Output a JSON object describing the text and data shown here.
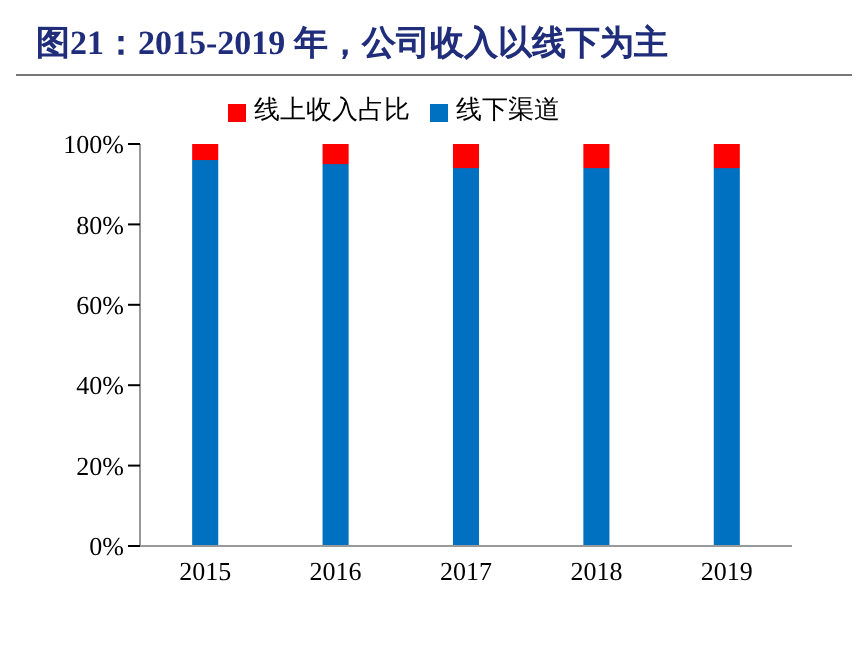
{
  "chart_data": {
    "type": "bar",
    "title": "图21：2015-2019 年，公司收入以线下为主",
    "categories": [
      "2015",
      "2016",
      "2017",
      "2018",
      "2019"
    ],
    "stacked": true,
    "series": [
      {
        "name": "线下渠道",
        "color": "#0070c0",
        "values": [
          96,
          95,
          94,
          94,
          94
        ]
      },
      {
        "name": "线上收入占比",
        "color": "#ff0000",
        "values": [
          4,
          5,
          6,
          6,
          6
        ]
      }
    ],
    "ylim": [
      0,
      100
    ],
    "yticks": [
      {
        "value": 0,
        "label": "0%"
      },
      {
        "value": 20,
        "label": "20%"
      },
      {
        "value": 40,
        "label": "40%"
      },
      {
        "value": 60,
        "label": "60%"
      },
      {
        "value": 80,
        "label": "80%"
      },
      {
        "value": 100,
        "label": "100%"
      }
    ],
    "grid": false,
    "legend": "top"
  }
}
